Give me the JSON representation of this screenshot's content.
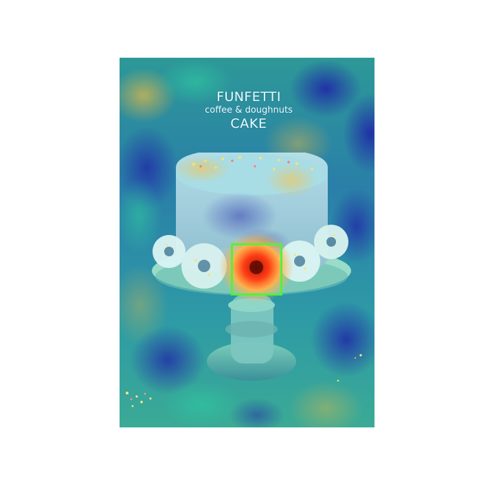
{
  "image": {
    "title_line_1": "FUNFETTI",
    "title_line_2": "coffee & doughnuts",
    "title_line_3": "CAKE"
  },
  "overlay": {
    "type": "attention-heatmap",
    "box_color": "#52f23a"
  },
  "subject": {
    "main": "cake-on-stand",
    "highlighted": "doughnut"
  }
}
